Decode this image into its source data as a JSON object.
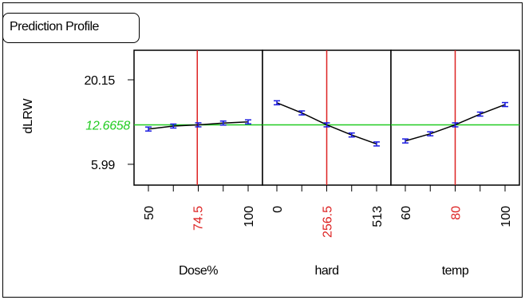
{
  "title": "Prediction Profile",
  "chart_data": {
    "type": "line",
    "response": {
      "label": "dLRW",
      "current_value": "12.6658",
      "yticks": [
        {
          "value": 20.15,
          "label": "20.15"
        },
        {
          "value": 5.99,
          "label": "5.99"
        }
      ],
      "ylim": [
        2.5,
        25.1
      ]
    },
    "panels": [
      {
        "factor": "Dose%",
        "ticks": [
          "50",
          "74.5",
          "100"
        ],
        "current": "74.5",
        "xlim": [
          50,
          100
        ],
        "current_x": 74.5,
        "points": [
          {
            "x": 50,
            "y": 11.9
          },
          {
            "x": 62.5,
            "y": 12.4
          },
          {
            "x": 75,
            "y": 12.6
          },
          {
            "x": 87.5,
            "y": 12.9
          },
          {
            "x": 100,
            "y": 13.1
          }
        ]
      },
      {
        "factor": "hard",
        "ticks": [
          "0",
          "256.5",
          "513"
        ],
        "current": "256.5",
        "xlim": [
          0,
          513
        ],
        "current_x": 256.5,
        "points": [
          {
            "x": 0,
            "y": 16.3
          },
          {
            "x": 128.25,
            "y": 14.6
          },
          {
            "x": 256.5,
            "y": 12.6
          },
          {
            "x": 384.75,
            "y": 10.9
          },
          {
            "x": 513,
            "y": 9.4
          }
        ]
      },
      {
        "factor": "temp",
        "ticks": [
          "60",
          "80",
          "100"
        ],
        "current": "80",
        "xlim": [
          60,
          100
        ],
        "current_x": 80,
        "points": [
          {
            "x": 60,
            "y": 9.9
          },
          {
            "x": 70,
            "y": 11.1
          },
          {
            "x": 80,
            "y": 12.6
          },
          {
            "x": 90,
            "y": 14.4
          },
          {
            "x": 100,
            "y": 16.0
          }
        ]
      }
    ],
    "grid": false,
    "colors": {
      "current_x_line": "#dd2222",
      "current_y_line": "#22cc22",
      "current_y_label": "#22cc22",
      "current_tick_label": "#dd2222",
      "points": "#1a1ae0",
      "curve": "#000000"
    }
  }
}
